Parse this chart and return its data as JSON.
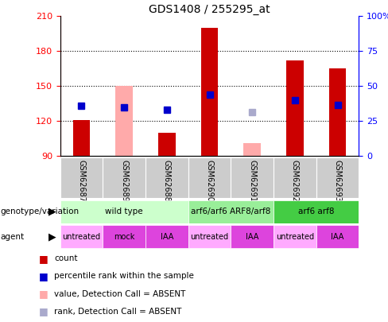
{
  "title": "GDS1408 / 255295_at",
  "samples": [
    "GSM62687",
    "GSM62689",
    "GSM62688",
    "GSM62690",
    "GSM62691",
    "GSM62692",
    "GSM62693"
  ],
  "ylim": [
    90,
    210
  ],
  "yticks": [
    90,
    120,
    150,
    180,
    210
  ],
  "red_count": [
    121,
    null,
    110,
    200,
    null,
    172,
    165
  ],
  "pink_absent_value": [
    null,
    150,
    null,
    null,
    101,
    null,
    null
  ],
  "blue_rank": [
    133,
    132,
    130,
    143,
    null,
    138,
    134
  ],
  "lightblue_absent_rank": [
    null,
    null,
    null,
    null,
    128,
    null,
    null
  ],
  "bar_bottom": 90,
  "red_color": "#cc0000",
  "pink_color": "#ffaaaa",
  "blue_color": "#0000cc",
  "lightblue_color": "#aaaacc",
  "bar_width": 0.4,
  "marker_size": 6,
  "geno_spans": [
    [
      0,
      3,
      "wild type",
      "#ccffcc"
    ],
    [
      3,
      5,
      "arf6/arf6 ARF8/arf8",
      "#99ee99"
    ],
    [
      5,
      7,
      "arf6 arf8",
      "#44cc44"
    ]
  ],
  "agent_spans": [
    [
      0,
      1,
      "untreated",
      "#ffaaff"
    ],
    [
      1,
      2,
      "mock",
      "#dd44dd"
    ],
    [
      2,
      3,
      "IAA",
      "#dd44dd"
    ],
    [
      3,
      4,
      "untreated",
      "#ffaaff"
    ],
    [
      4,
      5,
      "IAA",
      "#dd44dd"
    ],
    [
      5,
      6,
      "untreated",
      "#ffaaff"
    ],
    [
      6,
      7,
      "IAA",
      "#dd44dd"
    ]
  ],
  "legend_items": [
    [
      "#cc0000",
      "count"
    ],
    [
      "#0000cc",
      "percentile rank within the sample"
    ],
    [
      "#ffaaaa",
      "value, Detection Call = ABSENT"
    ],
    [
      "#aaaacc",
      "rank, Detection Call = ABSENT"
    ]
  ]
}
